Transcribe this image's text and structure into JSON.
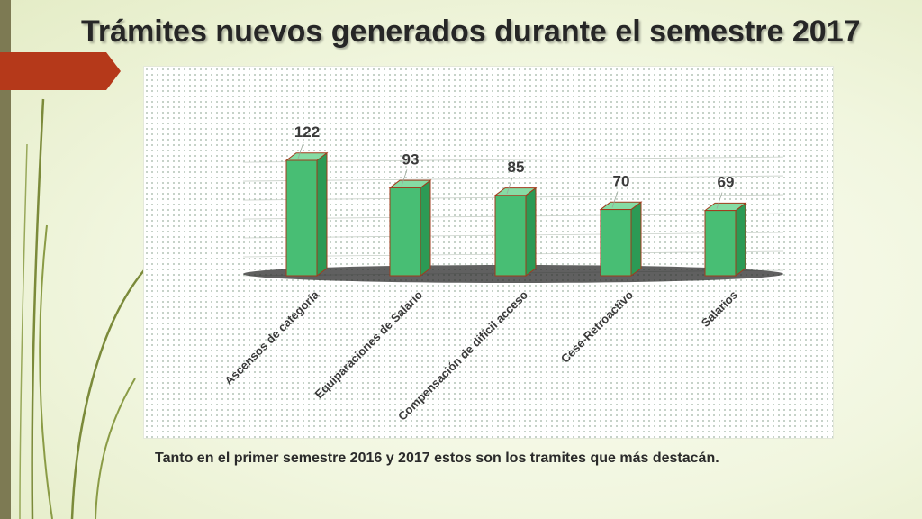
{
  "title": "Trámites nuevos generados durante el semestre 2017",
  "caption": "Tanto en el primer semestre 2016 y 2017 estos son los tramites que más destacán.",
  "colors": {
    "bar_front": "#48be74",
    "bar_side": "#2c9a55",
    "bar_top": "#86dca4",
    "bar_border": "#a13b1c",
    "accent": "#b5391a"
  },
  "chart_data": {
    "type": "bar",
    "title": "",
    "xlabel": "",
    "ylabel": "",
    "categories": [
      "Ascensos de categoría",
      "Equiparaciones de Salario",
      "Compensación de difícil acceso",
      "Cese-Retroactivo",
      "Salarios"
    ],
    "values": [
      122,
      93,
      85,
      70,
      69
    ],
    "ylim": [
      0,
      140
    ],
    "grid": true,
    "legend": "none",
    "data_labels": [
      "122",
      "93",
      "85",
      "70",
      "69"
    ]
  }
}
